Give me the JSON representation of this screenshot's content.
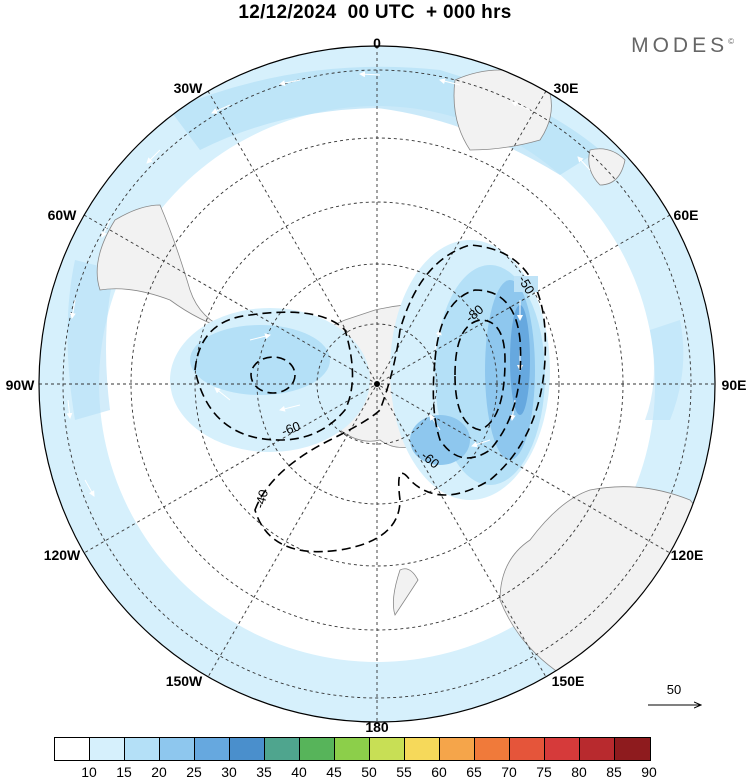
{
  "title": "12/12/2024  00 UTC  + 000 hrs",
  "brand": "MODES",
  "brand_mark": "©",
  "map": {
    "projection": "south polar stereographic",
    "longitude_labels": {
      "top": "0",
      "top_right": "30E",
      "right_upper": "60E",
      "right": "90E",
      "right_lower": "120E",
      "bottom_right": "150E",
      "bottom": "180",
      "bottom_left": "150W",
      "left_lower": "120W",
      "left": "90W",
      "left_upper": "60W",
      "top_left": "30W"
    },
    "contour_labels": [
      "-50",
      "-80",
      "-60",
      "-60",
      "-40"
    ],
    "vector_scale_label": "50",
    "land_color": "#f2f2f2",
    "shading_color": "#bfe3f7"
  },
  "colorbar": {
    "tick_labels": [
      "10",
      "15",
      "20",
      "25",
      "30",
      "35",
      "40",
      "45",
      "50",
      "55",
      "60",
      "65",
      "70",
      "75",
      "80",
      "85",
      "90"
    ],
    "colors": [
      "#ffffff",
      "#d6f0fc",
      "#b4e0f7",
      "#8ec7ee",
      "#66a8df",
      "#4a8fcc",
      "#4fa58e",
      "#57b45a",
      "#8ccf4a",
      "#c8df55",
      "#f6d95a",
      "#f5a54a",
      "#f07a3a",
      "#e5553a",
      "#d63a3a",
      "#b82a2e",
      "#8e1b1e"
    ]
  }
}
